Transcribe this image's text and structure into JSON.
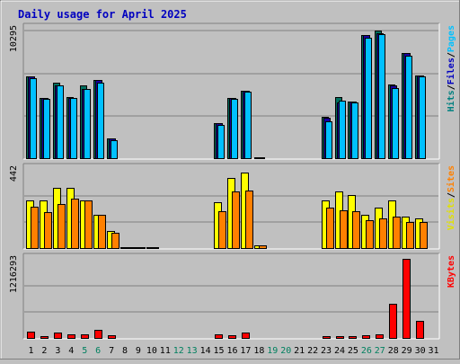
{
  "chart_data": {
    "type": "bar",
    "title": "Daily usage for April 2025",
    "days": [
      1,
      2,
      3,
      4,
      5,
      6,
      7,
      8,
      9,
      10,
      11,
      12,
      13,
      14,
      15,
      16,
      17,
      18,
      19,
      20,
      21,
      22,
      23,
      24,
      25,
      26,
      27,
      28,
      29,
      30,
      31
    ],
    "weekend_days": [
      5,
      6,
      12,
      13,
      19,
      20,
      26,
      27
    ],
    "panels": [
      {
        "id": "hits",
        "ymax_label": "10295",
        "ymax": 10295,
        "legend": [
          {
            "text": "Pages",
            "color": "#00c0ff"
          },
          {
            "text": "/",
            "color": "#000000"
          },
          {
            "text": "Files",
            "color": "#0000c0"
          },
          {
            "text": "/",
            "color": "#000000"
          },
          {
            "text": "Hits",
            "color": "#008080"
          }
        ],
        "series": [
          {
            "name": "Hits",
            "color": "#006f5f",
            "values": [
              6600,
              4900,
              6100,
              5000,
              5900,
              6300,
              1650,
              50,
              50,
              50,
              0,
              0,
              0,
              0,
              2850,
              4900,
              5500,
              150,
              0,
              0,
              0,
              0,
              3400,
              5000,
              4600,
              9900,
              10295,
              6000,
              8500,
              6700,
              0
            ]
          },
          {
            "name": "Files",
            "color": "#1800a0",
            "values": [
              6600,
              4900,
              5900,
              4900,
              5600,
              6300,
              1650,
              50,
              50,
              50,
              0,
              0,
              0,
              0,
              2850,
              4900,
              5500,
              150,
              0,
              0,
              0,
              0,
              3300,
              4500,
              4600,
              9900,
              10100,
              5900,
              8500,
              6700,
              0
            ]
          },
          {
            "name": "Pages",
            "color": "#00c0ff",
            "values": [
              6500,
              4800,
              5900,
              4900,
              5600,
              6100,
              1500,
              50,
              50,
              50,
              0,
              0,
              0,
              0,
              2700,
              4800,
              5400,
              150,
              0,
              0,
              0,
              0,
              3000,
              4700,
              4500,
              9700,
              10000,
              5700,
              8300,
              6600,
              0
            ]
          }
        ]
      },
      {
        "id": "visits",
        "ymax_label": "442",
        "ymax": 442,
        "legend": [
          {
            "text": "Sites",
            "color": "#ff8000"
          },
          {
            "text": "/",
            "color": "#000000"
          },
          {
            "text": "Visits",
            "color": "#e0e000"
          }
        ],
        "series": [
          {
            "name": "Visits",
            "color": "#ffff00",
            "values": [
              270,
              270,
              340,
              340,
              270,
              190,
              100,
              10,
              10,
              10,
              0,
              0,
              0,
              0,
              260,
              390,
              420,
              20,
              0,
              0,
              0,
              0,
              270,
              320,
              300,
              190,
              230,
              270,
              180,
              170,
              0
            ]
          },
          {
            "name": "Sites",
            "color": "#ff8000",
            "values": [
              235,
              205,
              250,
              280,
              270,
              190,
              90,
              10,
              10,
              10,
              0,
              0,
              0,
              0,
              210,
              320,
              325,
              20,
              0,
              0,
              0,
              0,
              230,
              215,
              210,
              160,
              170,
              180,
              150,
              150,
              0
            ]
          }
        ]
      },
      {
        "id": "kbytes",
        "ymax_label": "1216293",
        "ymax": 1216293,
        "legend": [
          {
            "text": "KBytes",
            "color": "#ff0000"
          }
        ],
        "series": [
          {
            "name": "KBytes",
            "color": "#ff0000",
            "values": [
              110000,
              40000,
              90000,
              70000,
              70000,
              130000,
              50000,
              15000,
              15000,
              15000,
              0,
              0,
              0,
              0,
              70000,
              60000,
              100000,
              15000,
              0,
              0,
              0,
              0,
              35000,
              35000,
              35000,
              55000,
              70000,
              530000,
              1216293,
              280000,
              0
            ]
          }
        ]
      }
    ]
  }
}
